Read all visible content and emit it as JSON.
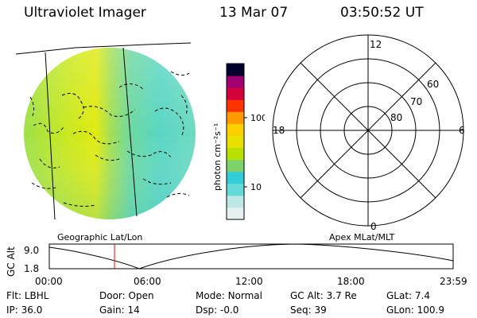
{
  "header": {
    "title": "Ultraviolet Imager",
    "date": "13 Mar 07",
    "time": "03:50:52 UT"
  },
  "colorbar": {
    "label": "photon cm⁻²s⁻¹",
    "ticks": [
      "100",
      "10"
    ],
    "colors": [
      "#e6f0f0",
      "#bfe6e6",
      "#66d9d9",
      "#33ccd9",
      "#7dd36b",
      "#b8e000",
      "#e8e000",
      "#ffd000",
      "#ff9900",
      "#ff3300",
      "#d4003a",
      "#a00070",
      "#000030"
    ]
  },
  "polar": {
    "mlt_labels": {
      "top": "12",
      "left": "18",
      "right": "6",
      "bottom": "0"
    },
    "lat_labels": [
      "60",
      "70",
      "80"
    ]
  },
  "labels": {
    "geographic": "Geographic Lat/Lon",
    "apex": "Apex MLat/MLT"
  },
  "orbit": {
    "ylabel": "GC Alt",
    "y_ticks": [
      "9.0",
      "1.8"
    ],
    "x_ticks": [
      "00:00",
      "06:00",
      "12:00",
      "18:00",
      "23:59"
    ]
  },
  "info": {
    "flt_label": "Flt:",
    "flt_value": "LBHL",
    "ip_label": "IP:",
    "ip_value": "36.0",
    "door_label": "Door:",
    "door_value": "Open",
    "gain_label": "Gain:",
    "gain_value": "14",
    "mode_label": "Mode:",
    "mode_value": "Normal",
    "dsp_label": "Dsp:",
    "dsp_value": "-0.0",
    "gcalt_label": "GC Alt:",
    "gcalt_value": "3.7 Re",
    "seq_label": "Seq:",
    "seq_value": "39",
    "glat_label": "GLat:",
    "glat_value": "7.4",
    "glon_label": "GLon:",
    "glon_value": "100.9"
  }
}
